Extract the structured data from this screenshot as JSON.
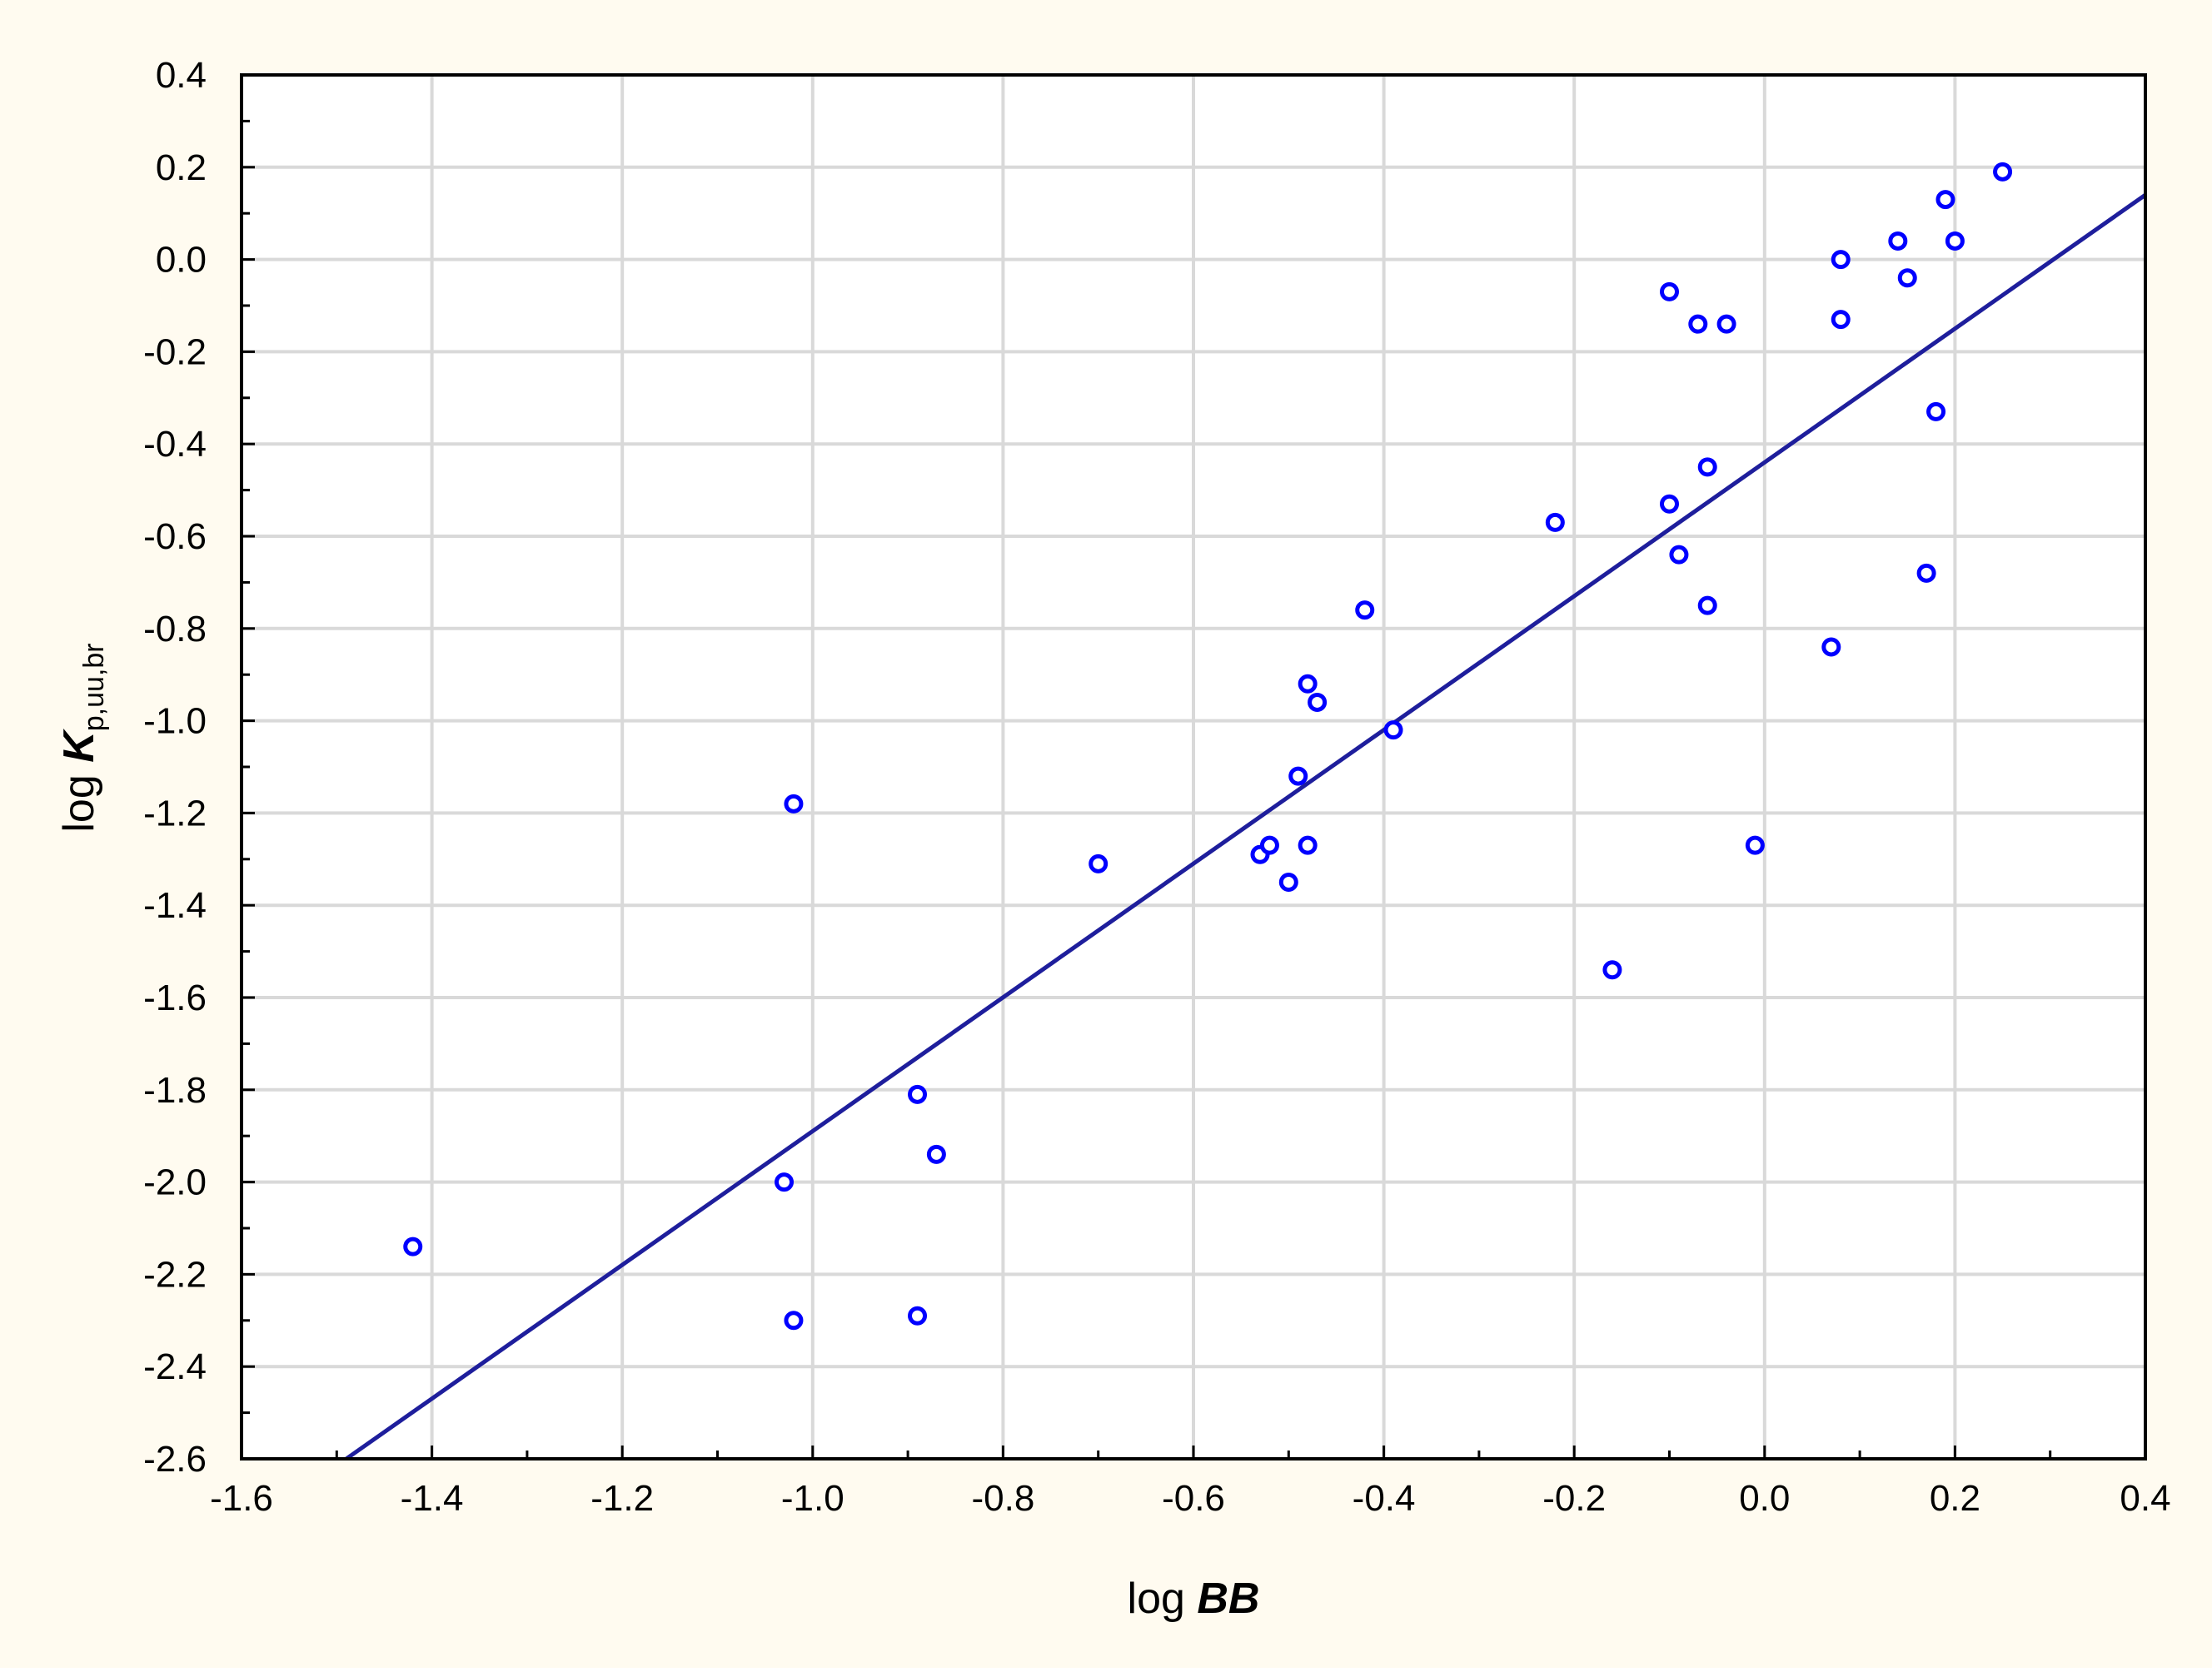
{
  "colors": {
    "outer_background": "#fffbf0",
    "plot_background": "#ffffff",
    "grid": "#d9d9d9",
    "frame": "#000000",
    "marker": "#0000ff",
    "fit_line": "#1e1e9c"
  },
  "chart_data": {
    "type": "scatter",
    "xlabel": {
      "prefix": "log ",
      "main": "BB"
    },
    "ylabel": {
      "prefix": "log ",
      "main": "K",
      "subscript": "p,uu,br"
    },
    "xlim": [
      -1.6,
      0.4
    ],
    "ylim": [
      -2.6,
      0.4
    ],
    "x_ticks": [
      "-1.6",
      "-1.4",
      "-1.2",
      "-1.0",
      "-0.8",
      "-0.6",
      "-0.4",
      "-0.2",
      "0.0",
      "0.2",
      "0.4"
    ],
    "y_ticks": [
      "0.4",
      "0.2",
      "0.0",
      "-0.2",
      "-0.4",
      "-0.6",
      "-0.8",
      "-1.0",
      "-1.2",
      "-1.4",
      "-1.6",
      "-1.8",
      "-2.0",
      "-2.2",
      "-2.4",
      "-2.6"
    ],
    "grid": true,
    "points": [
      {
        "x": -1.42,
        "y": -2.14
      },
      {
        "x": -1.03,
        "y": -2.0
      },
      {
        "x": -1.02,
        "y": -2.3
      },
      {
        "x": -1.02,
        "y": -1.18
      },
      {
        "x": -0.89,
        "y": -2.29
      },
      {
        "x": -0.89,
        "y": -1.81
      },
      {
        "x": -0.87,
        "y": -1.94
      },
      {
        "x": -0.7,
        "y": -1.31
      },
      {
        "x": -0.53,
        "y": -1.29
      },
      {
        "x": -0.52,
        "y": -1.27
      },
      {
        "x": -0.5,
        "y": -1.35
      },
      {
        "x": -0.49,
        "y": -1.12
      },
      {
        "x": -0.48,
        "y": -1.27
      },
      {
        "x": -0.48,
        "y": -0.92
      },
      {
        "x": -0.47,
        "y": -0.96
      },
      {
        "x": -0.42,
        "y": -0.76
      },
      {
        "x": -0.39,
        "y": -1.02
      },
      {
        "x": -0.22,
        "y": -0.57
      },
      {
        "x": -0.16,
        "y": -1.54
      },
      {
        "x": -0.1,
        "y": -0.07
      },
      {
        "x": -0.1,
        "y": -0.53
      },
      {
        "x": -0.09,
        "y": -0.64
      },
      {
        "x": -0.07,
        "y": -0.14
      },
      {
        "x": -0.06,
        "y": -0.45
      },
      {
        "x": -0.06,
        "y": -0.75
      },
      {
        "x": -0.04,
        "y": -0.14
      },
      {
        "x": -0.01,
        "y": -1.27
      },
      {
        "x": 0.07,
        "y": -0.84
      },
      {
        "x": 0.08,
        "y": 0.0
      },
      {
        "x": 0.08,
        "y": -0.13
      },
      {
        "x": 0.14,
        "y": 0.04
      },
      {
        "x": 0.15,
        "y": -0.04
      },
      {
        "x": 0.17,
        "y": -0.68
      },
      {
        "x": 0.18,
        "y": -0.33
      },
      {
        "x": 0.19,
        "y": 0.13
      },
      {
        "x": 0.2,
        "y": 0.04
      },
      {
        "x": 0.25,
        "y": 0.19
      }
    ],
    "fit_line": {
      "x": [
        -1.49,
        0.4
      ],
      "y": [
        -2.6,
        0.14
      ]
    }
  }
}
